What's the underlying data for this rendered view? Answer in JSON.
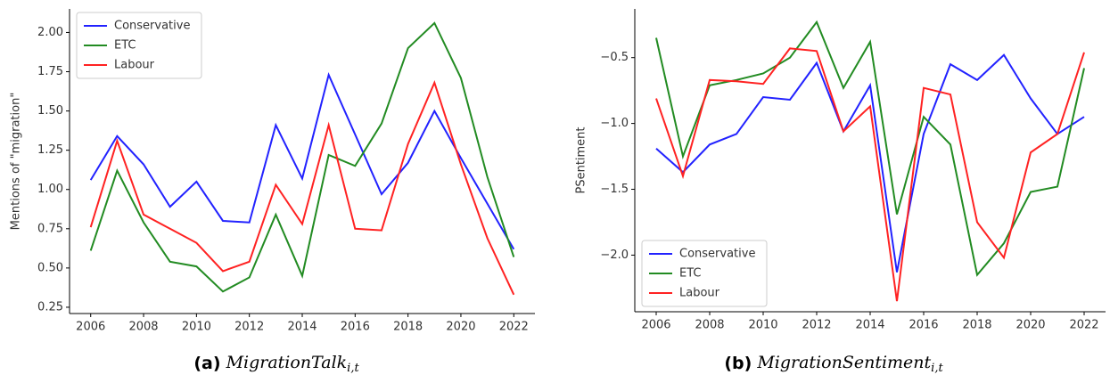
{
  "chart_data": [
    {
      "type": "line",
      "ylabel": "Mentions of \"migration\"",
      "legend": "upper left",
      "x": [
        2006,
        2007,
        2008,
        2009,
        2010,
        2011,
        2012,
        2013,
        2014,
        2015,
        2016,
        2017,
        2018,
        2019,
        2020,
        2021,
        2022
      ],
      "xlim": [
        2005.2,
        2022.8
      ],
      "xticks": [
        2006,
        2008,
        2010,
        2012,
        2014,
        2016,
        2018,
        2020,
        2022
      ],
      "ylim": [
        0.21,
        2.15
      ],
      "yticks": [
        0.25,
        0.5,
        0.75,
        1.0,
        1.25,
        1.5,
        1.75,
        2.0
      ],
      "ytick_labels": [
        "0.25",
        "0.50",
        "0.75",
        "1.00",
        "1.25",
        "1.50",
        "1.75",
        "2.00"
      ],
      "series": [
        {
          "name": "Conservative",
          "color": "#2222ff",
          "values": [
            1.06,
            1.34,
            1.16,
            0.89,
            1.05,
            0.8,
            0.79,
            1.41,
            1.07,
            1.73,
            1.35,
            0.97,
            1.17,
            1.5,
            1.2,
            0.91,
            0.62
          ]
        },
        {
          "name": "ETC",
          "color": "#228b22",
          "values": [
            0.61,
            1.12,
            0.79,
            0.54,
            0.51,
            0.35,
            0.44,
            0.84,
            0.45,
            1.22,
            1.15,
            1.42,
            1.9,
            2.06,
            1.71,
            1.08,
            0.57
          ]
        },
        {
          "name": "Labour",
          "color": "#ff2222",
          "values": [
            0.76,
            1.31,
            0.84,
            0.75,
            0.66,
            0.48,
            0.54,
            1.03,
            0.78,
            1.41,
            0.75,
            0.74,
            1.29,
            1.68,
            1.16,
            0.69,
            0.33
          ]
        }
      ],
      "caption": {
        "label": "(a)",
        "text": "MigrationTalk",
        "subscript": "i,t"
      }
    },
    {
      "type": "line",
      "ylabel": "PSentiment",
      "legend": "lower left",
      "x": [
        2006,
        2007,
        2008,
        2009,
        2010,
        2011,
        2012,
        2013,
        2014,
        2015,
        2016,
        2017,
        2018,
        2019,
        2020,
        2021,
        2022
      ],
      "xlim": [
        2005.2,
        2022.8
      ],
      "xticks": [
        2006,
        2008,
        2010,
        2012,
        2014,
        2016,
        2018,
        2020,
        2022
      ],
      "ylim": [
        -2.43,
        -0.13
      ],
      "yticks": [
        -2.0,
        -1.5,
        -1.0,
        -0.5
      ],
      "ytick_labels": [
        "−2.0",
        "−1.5",
        "−1.0",
        "−0.5"
      ],
      "series": [
        {
          "name": "Conservative",
          "color": "#2222ff",
          "values": [
            -1.19,
            -1.37,
            -1.16,
            -1.08,
            -0.8,
            -0.82,
            -0.54,
            -1.06,
            -0.71,
            -2.13,
            -1.08,
            -0.55,
            -0.67,
            -0.48,
            -0.81,
            -1.08,
            -0.95
          ]
        },
        {
          "name": "ETC",
          "color": "#228b22",
          "values": [
            -0.35,
            -1.25,
            -0.71,
            -0.67,
            -0.62,
            -0.5,
            -0.23,
            -0.73,
            -0.38,
            -1.69,
            -0.95,
            -1.16,
            -2.15,
            -1.91,
            -1.52,
            -1.48,
            -0.58
          ]
        },
        {
          "name": "Labour",
          "color": "#ff2222",
          "values": [
            -0.81,
            -1.4,
            -0.67,
            -0.68,
            -0.7,
            -0.43,
            -0.45,
            -1.06,
            -0.87,
            -2.35,
            -0.73,
            -0.78,
            -1.75,
            -2.02,
            -1.22,
            -1.08,
            -0.46
          ]
        }
      ],
      "caption": {
        "label": "(b)",
        "text": "MigrationSentiment",
        "subscript": "i,t"
      }
    }
  ]
}
